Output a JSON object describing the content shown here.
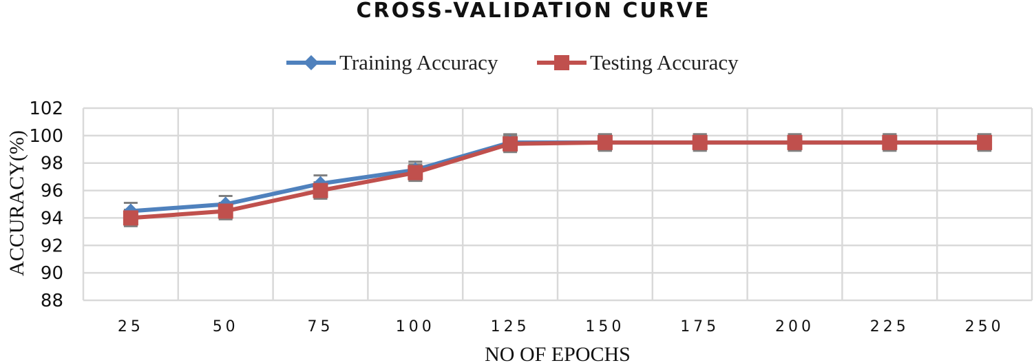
{
  "chart_data": {
    "type": "line",
    "title": "CROSS-VALIDATION CURVE",
    "xlabel": "NO OF EPOCHS",
    "ylabel": "ACCURACY(%)",
    "categories": [
      "25",
      "50",
      "75",
      "100",
      "125",
      "150",
      "175",
      "200",
      "225",
      "250"
    ],
    "ylim": [
      88,
      102
    ],
    "yticks": [
      "102",
      "100",
      "98",
      "96",
      "94",
      "92",
      "90",
      "88"
    ],
    "grid": true,
    "legend_position": "top-center",
    "series": [
      {
        "name": "Training Accuracy",
        "color": "#4f81bd",
        "marker": "diamond",
        "values": [
          94.5,
          95.0,
          96.5,
          97.5,
          99.5,
          99.5,
          99.5,
          99.5,
          99.5,
          99.5
        ]
      },
      {
        "name": "Testing Accuracy",
        "color": "#c0504d",
        "marker": "square",
        "values": [
          94.0,
          94.5,
          96.0,
          97.3,
          99.4,
          99.5,
          99.5,
          99.5,
          99.5,
          99.5
        ]
      }
    ],
    "error_bar_color": "#7f7f7f",
    "error_bar": 0.6
  }
}
